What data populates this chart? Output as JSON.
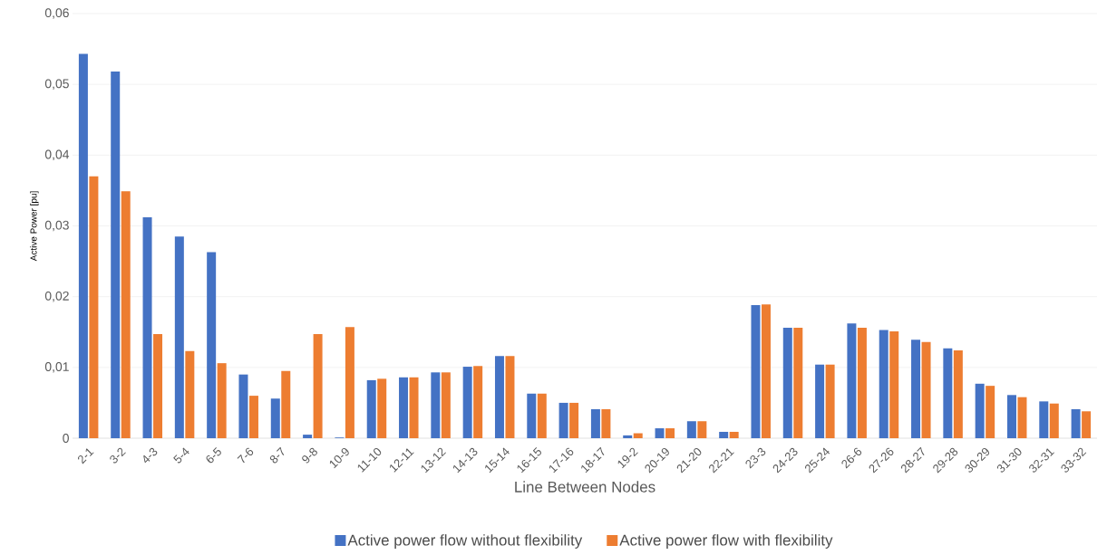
{
  "chart_data": {
    "type": "bar",
    "xlabel": "Line Between Nodes",
    "ylabel": "Active Power [pu]",
    "categories": [
      "2-1",
      "3-2",
      "4-3",
      "5-4",
      "6-5",
      "7-6",
      "8-7",
      "9-8",
      "10-9",
      "11-10",
      "12-11",
      "13-12",
      "14-13",
      "15-14",
      "16-15",
      "17-16",
      "18-17",
      "19-2",
      "20-19",
      "21-20",
      "22-21",
      "23-3",
      "24-23",
      "25-24",
      "26-6",
      "27-26",
      "28-27",
      "29-28",
      "30-29",
      "31-30",
      "32-31",
      "33-32"
    ],
    "series": [
      {
        "name": "Active power flow without flexibility",
        "color": "#4472c4",
        "values": [
          0.0543,
          0.0518,
          0.0312,
          0.0285,
          0.0263,
          0.009,
          0.0056,
          0.0005,
          0.0001,
          0.0082,
          0.0086,
          0.0093,
          0.0101,
          0.0116,
          0.0063,
          0.005,
          0.0041,
          0.0004,
          0.0014,
          0.0024,
          0.0009,
          0.0188,
          0.0156,
          0.0104,
          0.0162,
          0.0153,
          0.0139,
          0.0127,
          0.0077,
          0.0061,
          0.0052,
          0.0041
        ]
      },
      {
        "name": "Active power flow with flexibility",
        "color": "#ed7d31",
        "values": [
          0.037,
          0.0349,
          0.0147,
          0.0123,
          0.0106,
          0.006,
          0.0095,
          0.0147,
          0.0157,
          0.0084,
          0.0086,
          0.0093,
          0.0102,
          0.0116,
          0.0063,
          0.005,
          0.0041,
          0.0007,
          0.0014,
          0.0024,
          0.0009,
          0.0189,
          0.0156,
          0.0104,
          0.0156,
          0.0151,
          0.0136,
          0.0124,
          0.0074,
          0.0058,
          0.0049,
          0.0038
        ]
      }
    ],
    "ylim": [
      0,
      0.06
    ],
    "yticks": [
      {
        "value": 0,
        "label": "0"
      },
      {
        "value": 0.01,
        "label": "0,01"
      },
      {
        "value": 0.02,
        "label": "0,02"
      },
      {
        "value": 0.03,
        "label": "0,03"
      },
      {
        "value": 0.04,
        "label": "0,04"
      },
      {
        "value": 0.05,
        "label": "0,05"
      },
      {
        "value": 0.06,
        "label": "0,06"
      }
    ],
    "grid": "y",
    "legend": "bottom"
  }
}
